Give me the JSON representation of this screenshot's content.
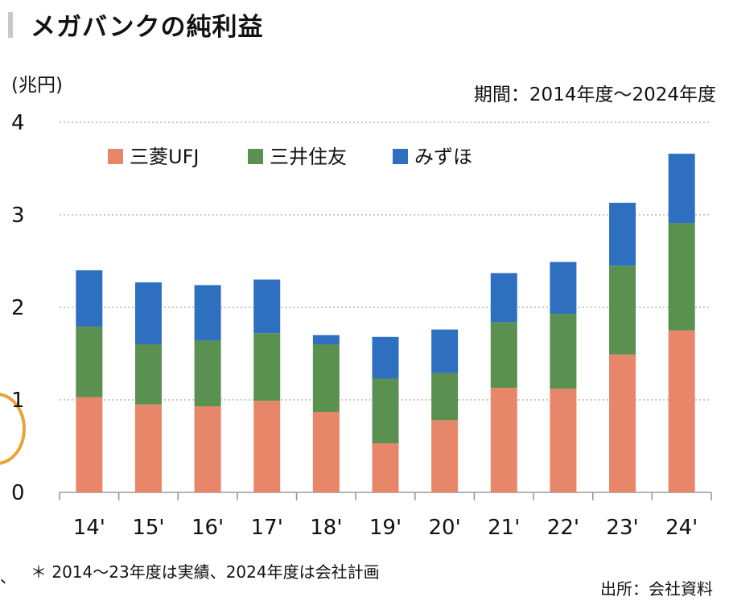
{
  "header": {
    "title": "メガバンクの純利益",
    "ylabel": "(兆円)",
    "period": "期間：2014年度～2024年度"
  },
  "footer": {
    "note": "＊ 2014～23年度は実績、2024年度は会社計画",
    "source": "出所：会社資料",
    "edge_mark": "、"
  },
  "chart_data": {
    "type": "bar",
    "stacked": true,
    "categories": [
      "14'",
      "15'",
      "16'",
      "17'",
      "18'",
      "19'",
      "20'",
      "21'",
      "22'",
      "23'",
      "24'"
    ],
    "series": [
      {
        "name": "三菱UFJ",
        "color": "#e8866a",
        "values": [
          1.03,
          0.95,
          0.93,
          0.99,
          0.87,
          0.53,
          0.78,
          1.13,
          1.12,
          1.49,
          1.75
        ]
      },
      {
        "name": "三井住友",
        "color": "#5a9050",
        "values": [
          0.76,
          0.65,
          0.71,
          0.73,
          0.73,
          0.7,
          0.51,
          0.71,
          0.81,
          0.96,
          1.16
        ]
      },
      {
        "name": "みずほ",
        "color": "#2f6fbf",
        "values": [
          0.61,
          0.67,
          0.6,
          0.58,
          0.1,
          0.45,
          0.47,
          0.53,
          0.56,
          0.68,
          0.75
        ]
      }
    ],
    "ylim": [
      0,
      4
    ],
    "yticks": [
      "0",
      "1",
      "2",
      "3",
      "4"
    ],
    "grid": true,
    "legend_position": "top-left"
  }
}
